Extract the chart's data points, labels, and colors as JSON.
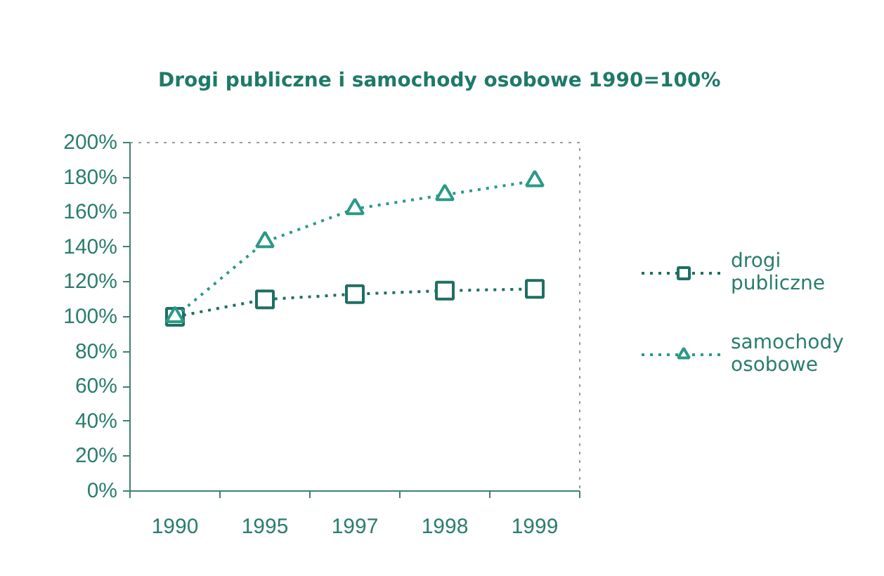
{
  "chart_data": {
    "type": "line",
    "title": "Drogi publiczne i samochody osobowe 1990=100%",
    "categories": [
      "1990",
      "1995",
      "1997",
      "1998",
      "1999"
    ],
    "series": [
      {
        "name": "drogi publiczne",
        "color": "#1f6f63",
        "marker": "square",
        "values": [
          100,
          110,
          113,
          115,
          116
        ]
      },
      {
        "name": "samochody osobowe",
        "color": "#2a9a86",
        "marker": "triangle",
        "values": [
          100,
          143,
          162,
          170,
          178
        ]
      }
    ],
    "ylim": [
      0,
      200
    ],
    "yticks": [
      {
        "value": 0,
        "label": "0%"
      },
      {
        "value": 20,
        "label": "20%"
      },
      {
        "value": 40,
        "label": "40%"
      },
      {
        "value": 60,
        "label": "60%"
      },
      {
        "value": 80,
        "label": "80%"
      },
      {
        "value": 100,
        "label": "100%"
      },
      {
        "value": 120,
        "label": "120%"
      },
      {
        "value": 140,
        "label": "140%"
      },
      {
        "value": 160,
        "label": "160%"
      },
      {
        "value": 180,
        "label": "180%"
      },
      {
        "value": 200,
        "label": "200%"
      }
    ],
    "legend": "right",
    "line_style": "dotted"
  }
}
